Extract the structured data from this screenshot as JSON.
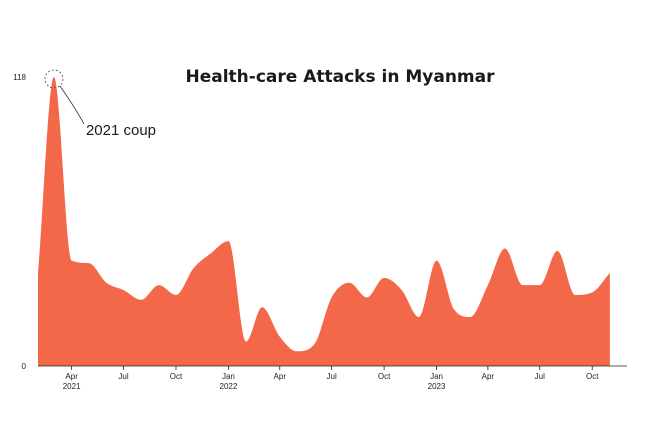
{
  "chart_data": {
    "type": "area",
    "title": "Health-care Attacks in Myanmar",
    "xlabel": "",
    "ylabel": "",
    "ylim": [
      0,
      118
    ],
    "y_ticks": [
      {
        "value": 0,
        "label": "0"
      },
      {
        "value": 118,
        "label": "118"
      }
    ],
    "x_range": [
      "2021-02-01",
      "2023-12-01"
    ],
    "x_ticks": [
      {
        "date": "2021-04-01",
        "label": "Apr",
        "year": "2021"
      },
      {
        "date": "2021-07-01",
        "label": "Jul",
        "year": ""
      },
      {
        "date": "2021-10-01",
        "label": "Oct",
        "year": ""
      },
      {
        "date": "2022-01-01",
        "label": "Jan",
        "year": "2022"
      },
      {
        "date": "2022-04-01",
        "label": "Apr",
        "year": ""
      },
      {
        "date": "2022-07-01",
        "label": "Jul",
        "year": ""
      },
      {
        "date": "2022-10-01",
        "label": "Oct",
        "year": ""
      },
      {
        "date": "2023-01-01",
        "label": "Jan",
        "year": "2023"
      },
      {
        "date": "2023-04-01",
        "label": "Apr",
        "year": ""
      },
      {
        "date": "2023-07-01",
        "label": "Jul",
        "year": ""
      },
      {
        "date": "2023-10-01",
        "label": "Oct",
        "year": ""
      }
    ],
    "series": [
      {
        "color": "#f4684a",
        "points": [
          {
            "date": "2021-02-01",
            "value": 38
          },
          {
            "date": "2021-03-01",
            "value": 118
          },
          {
            "date": "2021-04-01",
            "value": 43
          },
          {
            "date": "2021-05-01",
            "value": 42
          },
          {
            "date": "2021-06-01",
            "value": 34
          },
          {
            "date": "2021-07-01",
            "value": 31
          },
          {
            "date": "2021-08-01",
            "value": 27
          },
          {
            "date": "2021-09-01",
            "value": 33
          },
          {
            "date": "2021-10-01",
            "value": 29
          },
          {
            "date": "2021-11-01",
            "value": 40
          },
          {
            "date": "2021-12-01",
            "value": 46
          },
          {
            "date": "2022-01-01",
            "value": 51
          },
          {
            "date": "2022-02-01",
            "value": 10
          },
          {
            "date": "2022-03-01",
            "value": 24
          },
          {
            "date": "2022-04-01",
            "value": 12
          },
          {
            "date": "2022-05-01",
            "value": 6
          },
          {
            "date": "2022-06-01",
            "value": 9
          },
          {
            "date": "2022-07-01",
            "value": 28
          },
          {
            "date": "2022-08-01",
            "value": 34
          },
          {
            "date": "2022-09-01",
            "value": 28
          },
          {
            "date": "2022-10-01",
            "value": 36
          },
          {
            "date": "2022-11-01",
            "value": 31
          },
          {
            "date": "2022-12-01",
            "value": 20
          },
          {
            "date": "2023-01-01",
            "value": 43
          },
          {
            "date": "2023-02-01",
            "value": 23
          },
          {
            "date": "2023-03-01",
            "value": 20
          },
          {
            "date": "2023-04-01",
            "value": 33
          },
          {
            "date": "2023-05-01",
            "value": 48
          },
          {
            "date": "2023-06-01",
            "value": 33
          },
          {
            "date": "2023-07-01",
            "value": 33
          },
          {
            "date": "2023-08-01",
            "value": 47
          },
          {
            "date": "2023-09-01",
            "value": 29
          },
          {
            "date": "2023-10-01",
            "value": 30
          },
          {
            "date": "2023-11-01",
            "value": 38
          }
        ]
      }
    ],
    "annotations": [
      {
        "date": "2021-03-01",
        "value": 118,
        "text": "2021 coup"
      }
    ],
    "grid": false,
    "legend": "none"
  }
}
